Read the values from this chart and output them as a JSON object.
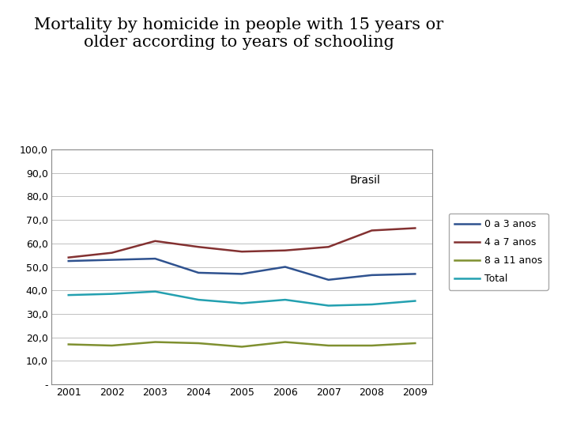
{
  "title": "Mortality by homicide in people with 15 years or\nolder according to years of schooling",
  "years": [
    2001,
    2002,
    2003,
    2004,
    2005,
    2006,
    2007,
    2008,
    2009
  ],
  "series": {
    "0 a 3 anos": {
      "values": [
        52.5,
        53.0,
        53.5,
        47.5,
        47.0,
        50.0,
        44.5,
        46.5,
        47.0
      ],
      "color": "#2f528f",
      "linewidth": 1.8
    },
    "4 a 7 anos": {
      "values": [
        54.0,
        56.0,
        61.0,
        58.5,
        56.5,
        57.0,
        58.5,
        65.5,
        66.5
      ],
      "color": "#833131",
      "linewidth": 1.8
    },
    "8 a 11 anos": {
      "values": [
        17.0,
        16.5,
        18.0,
        17.5,
        16.0,
        18.0,
        16.5,
        16.5,
        17.5
      ],
      "color": "#7f9030",
      "linewidth": 1.8
    },
    "Total": {
      "values": [
        38.0,
        38.5,
        39.5,
        36.0,
        34.5,
        36.0,
        33.5,
        34.0,
        35.5
      ],
      "color": "#23a0b0",
      "linewidth": 1.8
    }
  },
  "ylim": [
    0,
    100
  ],
  "yticks": [
    0,
    10,
    20,
    30,
    40,
    50,
    60,
    70,
    80,
    90,
    100
  ],
  "ytick_labels": [
    "-",
    "10,0",
    "20,0",
    "30,0",
    "40,0",
    "50,0",
    "60,0",
    "70,0",
    "80,0",
    "90,0",
    "100,0"
  ],
  "xlim": [
    2000.6,
    2009.4
  ],
  "brasil_label": "Brasil",
  "brasil_x": 2007.5,
  "brasil_y": 87.0,
  "background_color": "#ffffff",
  "title_fontsize": 15,
  "tick_fontsize": 9,
  "legend_fontsize": 9
}
